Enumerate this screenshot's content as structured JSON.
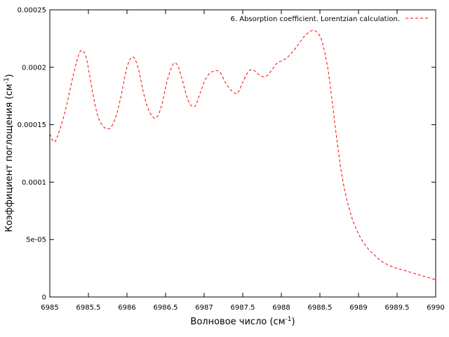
{
  "chart_data": {
    "type": "line",
    "xlabel": "Волновое число (см",
    "xlabel_unit_sup": "-1",
    "xlabel_close": ")",
    "ylabel": "Коэффициент поглощения (см",
    "ylabel_unit_sup": "-1",
    "ylabel_close": ")",
    "xlim": [
      6985,
      6990
    ],
    "ylim": [
      0,
      0.00025
    ],
    "x_ticks": [
      6985,
      6985.5,
      6986,
      6986.5,
      6987,
      6987.5,
      6988,
      6988.5,
      6989,
      6989.5,
      6990
    ],
    "x_tick_labels": [
      "6985",
      "6985.5",
      "6986",
      "6986.5",
      "6987",
      "6987.5",
      "6988",
      "6988.5",
      "6989",
      "6989.5",
      "6990"
    ],
    "y_ticks": [
      0,
      5e-05,
      0.0001,
      0.00015,
      0.0002,
      0.00025
    ],
    "y_tick_labels": [
      "0",
      "5e-05",
      "0.0001",
      "0.00015",
      "0.0002",
      "0.00025"
    ],
    "grid": false,
    "legend_position": "top-right",
    "colors": {
      "series": "#ff0000",
      "axis": "#000000"
    },
    "series": [
      {
        "name": "6. Absorption coefficient. Lorentzian calculation.",
        "style": "dashed",
        "x": [
          6985.0,
          6985.05,
          6985.1,
          6985.2,
          6985.3,
          6985.38,
          6985.43,
          6985.48,
          6985.55,
          6985.62,
          6985.7,
          6985.78,
          6985.85,
          6985.92,
          6986.0,
          6986.08,
          6986.15,
          6986.22,
          6986.3,
          6986.38,
          6986.45,
          6986.52,
          6986.6,
          6986.66,
          6986.72,
          6986.8,
          6986.88,
          6986.95,
          6987.02,
          6987.1,
          6987.2,
          6987.3,
          6987.42,
          6987.5,
          6987.58,
          6987.65,
          6987.72,
          6987.8,
          6987.88,
          6987.95,
          6988.02,
          6988.1,
          6988.2,
          6988.3,
          6988.4,
          6988.47,
          6988.53,
          6988.6,
          6988.65,
          6988.72,
          6988.8,
          6988.9,
          6989.0,
          6989.1,
          6989.2,
          6989.3,
          6989.45,
          6989.6,
          6989.75,
          6989.9,
          6990.0
        ],
        "y": [
          0.000142,
          0.000135,
          0.00014,
          0.000162,
          0.000192,
          0.000212,
          0.000214,
          0.000206,
          0.00018,
          0.000158,
          0.000148,
          0.000147,
          0.000156,
          0.000174,
          0.0002,
          0.000209,
          0.000198,
          0.000176,
          0.00016,
          0.000156,
          0.000167,
          0.000188,
          0.000203,
          0.000201,
          0.000188,
          0.00017,
          0.000166,
          0.000178,
          0.00019,
          0.000196,
          0.000196,
          0.000184,
          0.000177,
          0.000187,
          0.000197,
          0.000197,
          0.000193,
          0.000192,
          0.000198,
          0.000204,
          0.000206,
          0.00021,
          0.000218,
          0.000227,
          0.000232,
          0.00023,
          0.000222,
          0.0002,
          0.000175,
          0.000137,
          0.0001,
          7.2e-05,
          5.5e-05,
          4.4e-05,
          3.7e-05,
          3.1e-05,
          2.6e-05,
          2.3e-05,
          2e-05,
          1.7e-05,
          1.5e-05
        ]
      }
    ]
  }
}
